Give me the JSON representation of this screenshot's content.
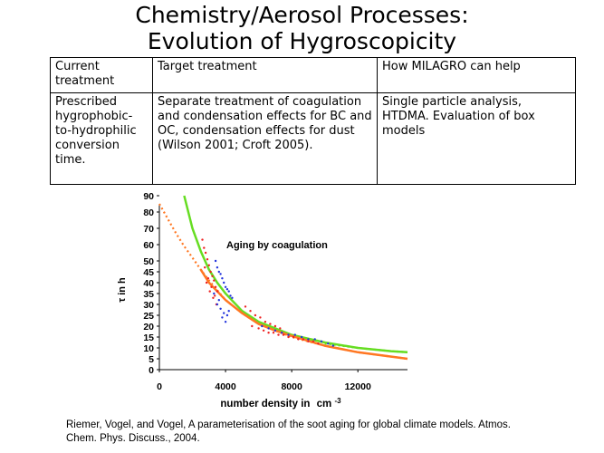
{
  "title": {
    "line1": "Chemistry/Aerosol Processes:",
    "line2": "Evolution of Hygroscopicity"
  },
  "table": {
    "headers": [
      "Current treatment",
      "Target treatment",
      "How MILAGRO can help"
    ],
    "rows": [
      [
        "Prescribed hygrophobic-to-hydrophilic conversion time.",
        "Separate treatment of coagulation and condensation effects for BC and OC, condensation effects for dust (Wilson 2001; Croft 2005).",
        "Single particle analysis, HTDMA. Evaluation of box models"
      ]
    ]
  },
  "chart_data": {
    "type": "scatter",
    "title": "Aging by coagulation",
    "xlabel": "number density in",
    "xlabel_unit": "cm",
    "xlabel_exp": "-3",
    "ylabel": "τ in h",
    "xlim": [
      0,
      15000
    ],
    "ylim": [
      0,
      90
    ],
    "xticks": [
      0,
      4000,
      8000,
      12000
    ],
    "yticks": [
      0,
      5,
      10,
      15,
      20,
      25,
      30,
      35,
      40,
      45,
      50,
      60,
      70,
      80,
      90
    ],
    "series": [
      {
        "name": "fit-green",
        "kind": "line",
        "color": "#66dd22",
        "x": [
          1500,
          2000,
          2500,
          3000,
          3500,
          4000,
          5000,
          6000,
          7000,
          8000,
          10000,
          12000,
          14000,
          15000
        ],
        "y": [
          90,
          70,
          56,
          46,
          40,
          35,
          27,
          22,
          19,
          16,
          12.5,
          10,
          8.5,
          8
        ]
      },
      {
        "name": "fit-orange-dotted",
        "kind": "dotted-line",
        "color": "#ff7722",
        "x": [
          0,
          500,
          1000,
          1500,
          2000,
          2500,
          3000,
          4000,
          5000,
          6000,
          8000,
          10000,
          12000,
          15000
        ],
        "y": [
          85,
          76,
          67,
          59,
          52,
          46,
          41,
          32,
          26,
          21,
          15,
          11,
          8,
          5
        ]
      },
      {
        "name": "fit-orange",
        "kind": "line",
        "color": "#ff7722",
        "x": [
          2500,
          3000,
          4000,
          5000,
          6000,
          7000,
          8000,
          10000,
          12000,
          15000
        ],
        "y": [
          46,
          40,
          32,
          26,
          21,
          18,
          15.5,
          11,
          8,
          5
        ]
      },
      {
        "name": "fit-green-dotted",
        "kind": "dotted-line",
        "color": "#66dd22",
        "x": [
          10000,
          11000,
          12000,
          13000,
          14000,
          15000
        ],
        "y": [
          12,
          11,
          10,
          9.2,
          8.5,
          8
        ]
      },
      {
        "name": "obs-red",
        "kind": "points",
        "color": "#ee2222",
        "x": [
          2600,
          2700,
          2800,
          2900,
          3000,
          3100,
          3200,
          3300,
          3400,
          3500,
          2750,
          2950,
          3150,
          3350,
          2850,
          3050,
          3250,
          3450,
          5200,
          5500,
          5800,
          6100,
          6400,
          6700,
          7000,
          7300,
          5600,
          6000,
          6300,
          6600,
          6900,
          7200,
          7500,
          7800,
          8100,
          8400,
          8700,
          9000,
          9300,
          9600
        ],
        "y": [
          63,
          58,
          55,
          51,
          48,
          45,
          43,
          41,
          38,
          36,
          47,
          42,
          38,
          34,
          40,
          36,
          33,
          30,
          29,
          27,
          25,
          24,
          22,
          21,
          20,
          19,
          20,
          19,
          18,
          17,
          17,
          16,
          16,
          15,
          15,
          14,
          14,
          13,
          13,
          12
        ]
      },
      {
        "name": "obs-blue",
        "kind": "points",
        "color": "#2233dd",
        "x": [
          3400,
          3500,
          3600,
          3700,
          3800,
          3900,
          4000,
          4100,
          4200,
          4300,
          4400,
          3500,
          3700,
          3900,
          4100,
          3300,
          3600,
          3800,
          4000,
          4200,
          6200,
          6600,
          7000,
          7400,
          7800,
          8200,
          8600,
          9000,
          9400,
          9800,
          10200,
          10500
        ],
        "y": [
          50,
          47,
          45,
          44,
          42,
          40,
          38,
          37,
          36,
          34,
          33,
          30,
          28,
          26,
          25,
          35,
          32,
          24,
          22,
          27,
          20,
          19,
          18,
          17,
          16,
          16,
          15,
          14,
          14,
          13,
          12,
          11
        ]
      }
    ]
  },
  "citation": {
    "line1": "Riemer, Vogel, and Vogel, A parameterisation of the soot aging for global climate models. Atmos.",
    "line2": "Chem. Phys. Discuss., 2004."
  }
}
